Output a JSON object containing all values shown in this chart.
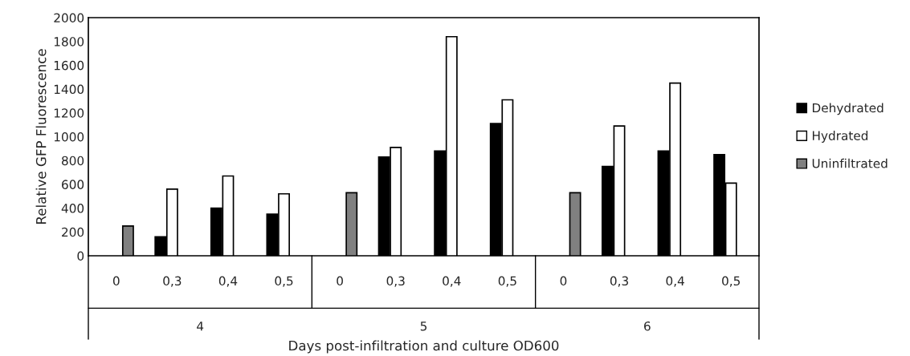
{
  "chart_data": {
    "type": "bar",
    "ylabel": "Relative GFP Fluorescence",
    "xlabel": "Days post-infiltration and culture OD600",
    "categories": [
      "0",
      "0,3",
      "0,4",
      "0,5",
      "0",
      "0,3",
      "0,4",
      "0,5",
      "0",
      "0,3",
      "0,4",
      "0,5"
    ],
    "annotations": [
      "4",
      "5",
      "6"
    ],
    "series": [
      {
        "name": "Dehydrated",
        "color": "#000000",
        "values": [
          null,
          160,
          400,
          350,
          null,
          830,
          880,
          1110,
          null,
          750,
          880,
          850
        ]
      },
      {
        "name": "Hydrated",
        "color": "#ffffff",
        "values": [
          null,
          560,
          670,
          520,
          null,
          910,
          1840,
          1310,
          null,
          1090,
          1450,
          610
        ]
      },
      {
        "name": "Uninfiltrated",
        "color": "#808080",
        "values": [
          250,
          null,
          null,
          null,
          530,
          null,
          null,
          null,
          530,
          null,
          null,
          null
        ]
      }
    ],
    "ylim": [
      0,
      2000
    ],
    "yticks": [
      0,
      200,
      400,
      600,
      800,
      1000,
      1200,
      1400,
      1600,
      1800,
      2000
    ],
    "grid": false,
    "legend": "right"
  }
}
